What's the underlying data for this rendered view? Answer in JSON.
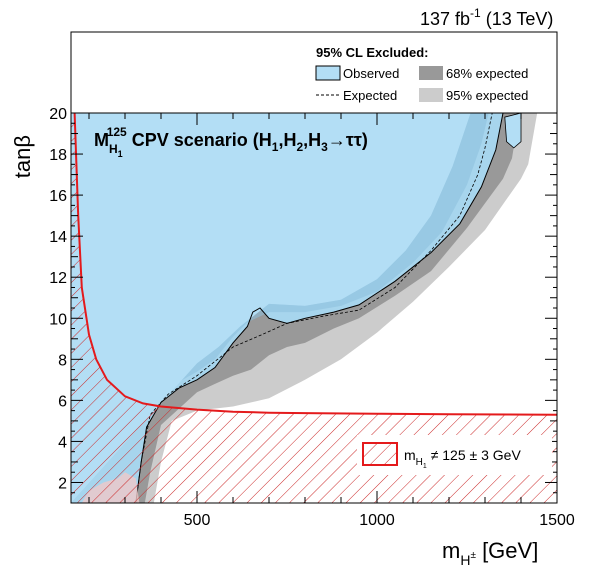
{
  "chart_data": {
    "type": "area",
    "header": {
      "lumi_main": "137 fb",
      "lumi_sup": "-1",
      "lumi_tail": " (13 TeV)"
    },
    "legend": {
      "title": "95% CL Excluded:",
      "observed": "Observed",
      "expected": "Expected",
      "band68": "68% expected",
      "band95": "95% expected"
    },
    "scenario": {
      "m": "M",
      "sub": "H",
      "subsub": "1",
      "sup": "125",
      "rest_a": " CPV scenario (H",
      "s1": "1",
      "comma1": ",H",
      "s2": "2",
      "comma2": ",H",
      "s3": "3",
      "arrow": "→ττ)"
    },
    "hatch_legend": {
      "pre": "m",
      "sub": "H",
      "subsub": "1",
      "post": " ≠ 125 ± 3 GeV"
    },
    "axes": {
      "xlabel_main": "m",
      "xlabel_sub": "H",
      "xlabel_subsup": "±",
      "xlabel_unit": " [GeV]",
      "ylabel": "tanβ",
      "xlim": [
        150,
        1500
      ],
      "ylim": [
        1,
        20
      ],
      "xticks": [
        500,
        1000,
        1500
      ],
      "yticks": [
        2,
        4,
        6,
        8,
        10,
        12,
        14,
        16,
        18,
        20
      ]
    },
    "colors": {
      "observed_fill": "#b3def5",
      "observed_border": "#000000",
      "band68": "#999999",
      "band95": "#cccccc",
      "hatch": "#cc2a2a",
      "hatch_boundary": "#e41a1c"
    },
    "observed_boundary": [
      [
        150,
        1.0
      ],
      [
        330,
        1.0
      ],
      [
        345,
        3.0
      ],
      [
        360,
        4.7
      ],
      [
        400,
        5.9
      ],
      [
        450,
        6.6
      ],
      [
        500,
        7.0
      ],
      [
        550,
        7.6
      ],
      [
        600,
        8.8
      ],
      [
        640,
        9.6
      ],
      [
        655,
        10.3
      ],
      [
        675,
        10.5
      ],
      [
        700,
        10.0
      ],
      [
        750,
        9.75
      ],
      [
        800,
        10.0
      ],
      [
        880,
        10.3
      ],
      [
        950,
        10.65
      ],
      [
        1050,
        11.8
      ],
      [
        1150,
        13.2
      ],
      [
        1230,
        14.6
      ],
      [
        1290,
        16.4
      ],
      [
        1330,
        18.2
      ],
      [
        1350,
        20.0
      ]
    ],
    "observed_island": [
      [
        1355,
        19.8
      ],
      [
        1360,
        18.6
      ],
      [
        1380,
        18.3
      ],
      [
        1400,
        18.6
      ],
      [
        1400,
        20.0
      ]
    ],
    "band95_upper": [
      [
        150,
        1.0
      ],
      [
        330,
        1.0
      ],
      [
        345,
        3.0
      ],
      [
        360,
        4.7
      ],
      [
        400,
        5.9
      ],
      [
        450,
        6.6
      ],
      [
        500,
        7.0
      ],
      [
        550,
        7.6
      ],
      [
        600,
        8.8
      ],
      [
        640,
        9.6
      ],
      [
        655,
        10.3
      ],
      [
        675,
        10.5
      ],
      [
        700,
        10.0
      ],
      [
        750,
        9.75
      ],
      [
        800,
        10.0
      ],
      [
        880,
        10.3
      ],
      [
        950,
        10.65
      ],
      [
        1050,
        11.8
      ],
      [
        1150,
        13.2
      ],
      [
        1230,
        14.6
      ],
      [
        1290,
        16.4
      ],
      [
        1330,
        18.2
      ],
      [
        1350,
        20.0
      ]
    ],
    "band95_lower": [
      [
        1445,
        20.0
      ],
      [
        1420,
        17.5
      ],
      [
        1400,
        16.8
      ],
      [
        1300,
        14.3
      ],
      [
        1200,
        12.5
      ],
      [
        1100,
        10.8
      ],
      [
        1000,
        9.3
      ],
      [
        900,
        8.0
      ],
      [
        800,
        7.0
      ],
      [
        700,
        6.1
      ],
      [
        600,
        5.7
      ],
      [
        500,
        5.5
      ],
      [
        430,
        5.0
      ],
      [
        400,
        3.0
      ],
      [
        380,
        1.0
      ]
    ],
    "band68_upper": [
      [
        150,
        1.0
      ],
      [
        330,
        1.0
      ],
      [
        345,
        3.0
      ],
      [
        360,
        4.7
      ],
      [
        400,
        5.9
      ],
      [
        450,
        6.6
      ],
      [
        500,
        7.0
      ],
      [
        550,
        7.6
      ],
      [
        600,
        8.8
      ],
      [
        640,
        9.6
      ],
      [
        655,
        10.3
      ],
      [
        675,
        10.5
      ],
      [
        700,
        10.0
      ],
      [
        750,
        9.75
      ],
      [
        800,
        10.0
      ],
      [
        880,
        10.3
      ],
      [
        950,
        10.65
      ],
      [
        1050,
        11.8
      ],
      [
        1150,
        13.2
      ],
      [
        1230,
        14.6
      ],
      [
        1290,
        16.4
      ],
      [
        1330,
        18.2
      ],
      [
        1350,
        20.0
      ]
    ],
    "band68_lower": [
      [
        1395,
        20.0
      ],
      [
        1375,
        17.8
      ],
      [
        1350,
        16.8
      ],
      [
        1250,
        14.4
      ],
      [
        1150,
        12.3
      ],
      [
        1050,
        11.1
      ],
      [
        950,
        10.0
      ],
      [
        880,
        9.5
      ],
      [
        800,
        8.8
      ],
      [
        750,
        8.6
      ],
      [
        700,
        8.2
      ],
      [
        650,
        7.5
      ],
      [
        600,
        7.2
      ],
      [
        550,
        6.8
      ],
      [
        500,
        6.4
      ],
      [
        450,
        5.6
      ],
      [
        400,
        4.8
      ],
      [
        370,
        2.5
      ],
      [
        355,
        1.0
      ]
    ],
    "expected_line": [
      [
        330,
        1.0
      ],
      [
        345,
        3.0
      ],
      [
        370,
        5.3
      ],
      [
        420,
        6.3
      ],
      [
        500,
        7.2
      ],
      [
        600,
        8.6
      ],
      [
        680,
        9.2
      ],
      [
        750,
        9.75
      ],
      [
        850,
        10.1
      ],
      [
        950,
        10.4
      ],
      [
        1050,
        11.5
      ],
      [
        1150,
        13.3
      ],
      [
        1230,
        15.0
      ],
      [
        1280,
        17.0
      ],
      [
        1300,
        18.3
      ],
      [
        1320,
        20.0
      ]
    ],
    "obs_shade_levels": [
      {
        "from": [
          [
            150,
            1.0
          ],
          [
            330,
            1.0
          ],
          [
            345,
            3.0
          ],
          [
            360,
            4.7
          ],
          [
            400,
            5.9
          ],
          [
            450,
            6.6
          ],
          [
            500,
            7.0
          ],
          [
            550,
            7.6
          ],
          [
            600,
            8.8
          ],
          [
            640,
            9.6
          ],
          [
            655,
            10.3
          ],
          [
            675,
            10.5
          ],
          [
            700,
            10.0
          ],
          [
            750,
            9.75
          ],
          [
            800,
            10.0
          ],
          [
            880,
            10.3
          ],
          [
            950,
            10.65
          ],
          [
            1050,
            11.8
          ],
          [
            1150,
            13.2
          ],
          [
            1230,
            14.6
          ],
          [
            1290,
            16.4
          ],
          [
            1330,
            18.2
          ],
          [
            1350,
            20.0
          ]
        ]
      },
      {
        "from": [
          [
            400,
            6.1
          ],
          [
            450,
            6.9
          ],
          [
            500,
            7.4
          ],
          [
            550,
            8.0
          ],
          [
            600,
            9.1
          ],
          [
            640,
            9.8
          ],
          [
            700,
            10.3
          ],
          [
            800,
            10.3
          ],
          [
            900,
            10.6
          ],
          [
            1000,
            11.3
          ],
          [
            1100,
            12.7
          ],
          [
            1180,
            14.2
          ],
          [
            1250,
            16.5
          ],
          [
            1290,
            18.5
          ],
          [
            1310,
            20.0
          ]
        ]
      },
      {
        "from": [
          [
            500,
            7.8
          ],
          [
            560,
            8.6
          ],
          [
            620,
            9.6
          ],
          [
            700,
            10.7
          ],
          [
            800,
            10.6
          ],
          [
            900,
            10.9
          ],
          [
            1000,
            11.9
          ],
          [
            1080,
            13.3
          ],
          [
            1150,
            15.0
          ],
          [
            1210,
            17.4
          ],
          [
            1260,
            20.0
          ]
        ]
      }
    ],
    "hatch_region": {
      "x_min": 150,
      "x_max": 1500,
      "curve": [
        [
          160,
          20.0
        ],
        [
          170,
          15.0
        ],
        [
          180,
          11.5
        ],
        [
          200,
          9.2
        ],
        [
          220,
          8.0
        ],
        [
          250,
          7.0
        ],
        [
          300,
          6.2
        ],
        [
          350,
          5.85
        ],
        [
          400,
          5.7
        ],
        [
          500,
          5.55
        ],
        [
          600,
          5.45
        ],
        [
          700,
          5.4
        ],
        [
          800,
          5.38
        ],
        [
          1000,
          5.35
        ],
        [
          1200,
          5.32
        ],
        [
          1500,
          5.3
        ]
      ],
      "low_region_bottom": [
        [
          150,
          1.0
        ],
        [
          1500,
          1.0
        ]
      ]
    },
    "pink_blob": [
      [
        180,
        1.0
      ],
      [
        200,
        1.6
      ],
      [
        240,
        2.0
      ],
      [
        280,
        2.2
      ],
      [
        300,
        2.5
      ],
      [
        330,
        2.2
      ],
      [
        340,
        1.0
      ]
    ]
  }
}
